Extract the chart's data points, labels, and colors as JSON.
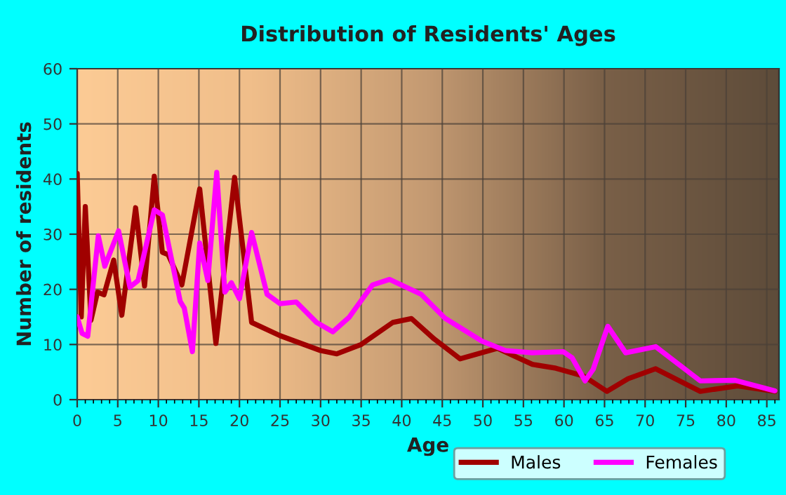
{
  "chart_data": {
    "type": "line",
    "title": "Distribution of Residents' Ages",
    "xlabel": "Age",
    "ylabel": "Number of residents",
    "xlim": [
      0,
      86.5
    ],
    "xticks": [
      0,
      5,
      10,
      15,
      20,
      25,
      30,
      35,
      40,
      45,
      50,
      55,
      60,
      65,
      70,
      75,
      80,
      85
    ],
    "ylim": [
      0,
      60
    ],
    "yticks": [
      0,
      10,
      20,
      30,
      40,
      50,
      60
    ],
    "grid": true,
    "legend": "bottom",
    "line_style": "solid",
    "marker": "none",
    "series": [
      {
        "name": "Males",
        "color": "#a00000",
        "x": [
          0,
          0.5,
          1,
          1.7,
          2.5,
          3.3,
          4.5,
          5.5,
          7.2,
          8.3,
          9.5,
          10.5,
          11.2,
          12.9,
          15.1,
          17.1,
          19.4,
          21.5,
          25,
          30,
          32,
          35,
          38.9,
          41.2,
          44,
          47.2,
          51.8,
          56.1,
          59,
          62.4,
          65.3,
          67.9,
          71.3,
          76.8,
          81.4,
          86
        ],
        "values": [
          41,
          15,
          35,
          14.4,
          19.5,
          19,
          25.3,
          15.3,
          34.8,
          20.6,
          40.5,
          26.7,
          26.3,
          20.8,
          38.2,
          10.2,
          40.3,
          14,
          11.6,
          8.9,
          8.3,
          10,
          14,
          14.7,
          11,
          7.4,
          9.3,
          6.4,
          5.7,
          4.3,
          1.5,
          3.8,
          5.6,
          1.5,
          2.5,
          1.5
        ]
      },
      {
        "name": "Females",
        "color": "#ff00ff",
        "x": [
          0,
          0.6,
          1.3,
          2.6,
          3.4,
          5.1,
          6.5,
          7.5,
          9.5,
          10.5,
          12.7,
          13.2,
          14.2,
          15.1,
          16.1,
          17.2,
          18.2,
          19,
          20,
          21.5,
          23.4,
          25,
          27,
          29.5,
          31.5,
          33.5,
          36.4,
          38.5,
          42.4,
          45.3,
          49.9,
          52.8,
          56.1,
          59.9,
          61,
          62.6,
          63.6,
          65.4,
          67.6,
          71.3,
          76.8,
          81.1,
          86
        ],
        "values": [
          15,
          12,
          11.5,
          29.7,
          24.2,
          30.6,
          20.4,
          21.6,
          34.4,
          33.5,
          17.8,
          16.6,
          8.7,
          28.4,
          21.6,
          41.2,
          19.5,
          21.2,
          18.3,
          30.3,
          19.1,
          17.4,
          17.7,
          14,
          12.3,
          14.9,
          20.8,
          21.8,
          19.1,
          14.8,
          10.6,
          8.9,
          8.5,
          8.7,
          7.6,
          3.4,
          5.5,
          13.3,
          8.5,
          9.6,
          3.4,
          3.5,
          1.6
        ]
      }
    ]
  }
}
